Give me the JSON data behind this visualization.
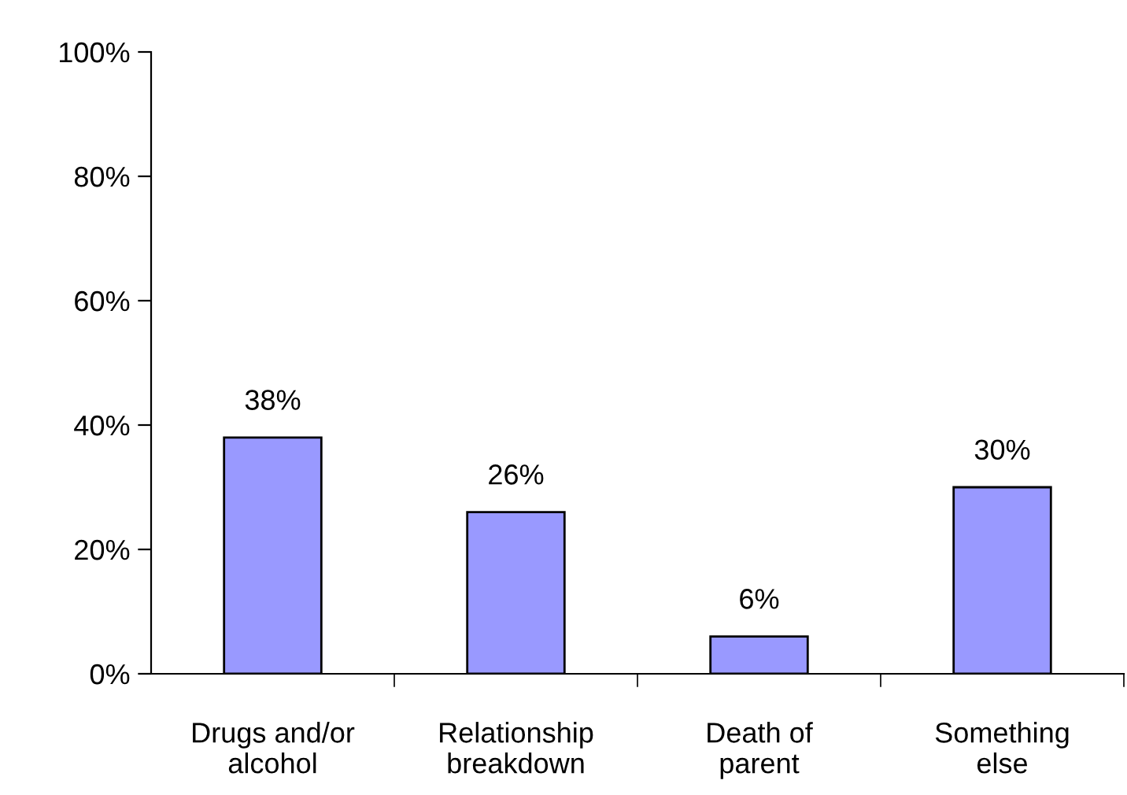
{
  "chart_data": {
    "type": "bar",
    "categories": [
      "Drugs and/or\nalcohol",
      "Relationship\nbreakdown",
      "Death of\nparent",
      "Something\nelse"
    ],
    "values": [
      38,
      26,
      6,
      30
    ],
    "value_labels": [
      "38%",
      "26%",
      "6%",
      "30%"
    ],
    "color": "#9999ff",
    "ylim": [
      0,
      100
    ],
    "yticks": [
      {
        "value": 0,
        "label": "0%"
      },
      {
        "value": 20,
        "label": "20%"
      },
      {
        "value": 40,
        "label": "40%"
      },
      {
        "value": 60,
        "label": "60%"
      },
      {
        "value": 80,
        "label": "80%"
      },
      {
        "value": 100,
        "label": "100%"
      }
    ],
    "grid": false,
    "legend": false
  }
}
